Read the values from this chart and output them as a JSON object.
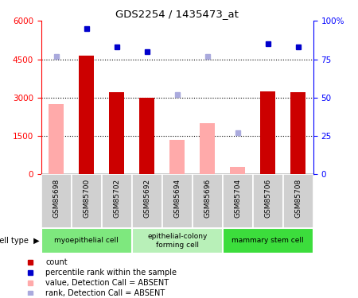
{
  "title": "GDS2254 / 1435473_at",
  "samples": [
    "GSM85698",
    "GSM85700",
    "GSM85702",
    "GSM85692",
    "GSM85694",
    "GSM85696",
    "GSM85704",
    "GSM85706",
    "GSM85708"
  ],
  "count_present": [
    null,
    4650,
    3200,
    3000,
    null,
    null,
    null,
    3250,
    3200
  ],
  "count_absent": [
    2750,
    null,
    null,
    null,
    1350,
    2000,
    280,
    null,
    null
  ],
  "rank_present_pct": [
    null,
    95,
    83,
    80,
    null,
    null,
    null,
    85,
    83
  ],
  "rank_absent_pct": [
    77,
    null,
    null,
    null,
    52,
    77,
    27,
    null,
    null
  ],
  "left_ylim": [
    0,
    6000
  ],
  "left_yticks": [
    0,
    1500,
    3000,
    4500,
    6000
  ],
  "right_ylim": [
    0,
    100
  ],
  "right_yticks": [
    0,
    25,
    50,
    75,
    100
  ],
  "right_yticklabels": [
    "0",
    "25",
    "50",
    "75",
    "100%"
  ],
  "cell_type_groups": [
    {
      "label": "myoepithelial cell",
      "color": "#7ee87e",
      "start": 0,
      "end": 3
    },
    {
      "label": "epithelial-colony\nforming cell",
      "color": "#b8f0b8",
      "start": 3,
      "end": 6
    },
    {
      "label": "mammary stem cell",
      "color": "#3cdd3c",
      "start": 6,
      "end": 9
    }
  ],
  "bar_color_red": "#cc0000",
  "bar_color_pink": "#ffaaaa",
  "point_color_blue": "#0000cc",
  "point_color_lightblue": "#aaaadd",
  "tick_bg_color": "#d0d0d0",
  "legend_items": [
    {
      "color": "#cc0000",
      "label": "count",
      "marker": "s"
    },
    {
      "color": "#0000cc",
      "label": "percentile rank within the sample",
      "marker": "s"
    },
    {
      "color": "#ffaaaa",
      "label": "value, Detection Call = ABSENT",
      "marker": "s"
    },
    {
      "color": "#aaaadd",
      "label": "rank, Detection Call = ABSENT",
      "marker": "s"
    }
  ],
  "bg_color": "#ffffff"
}
